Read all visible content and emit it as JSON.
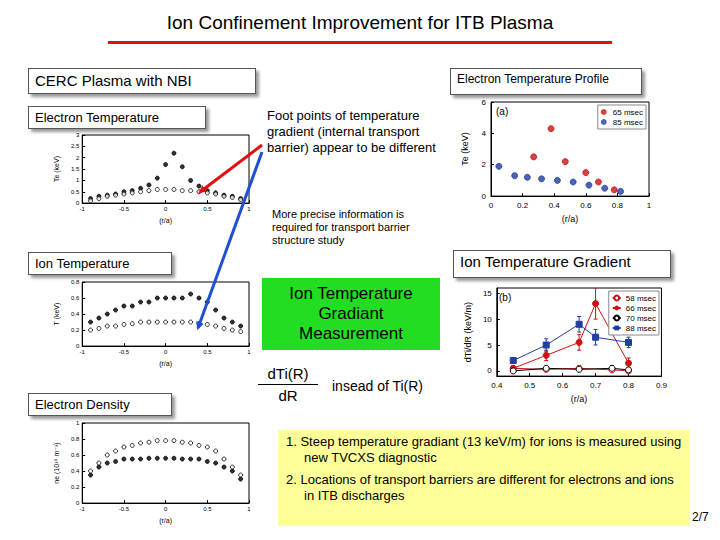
{
  "title": "Ion Confinement Improvement for ITB Plasma",
  "header": "CERC Plasma with NBI",
  "notes": {
    "foot_points": "Foot points of temperature gradient (internal transport barrier) appear to be different",
    "precise": "More precise information is required for transport barrier structure study"
  },
  "measurement_box": "Ion Temperature Gradiant Measurement",
  "formula": {
    "numerator": "dTi(R)",
    "denominator": "dR",
    "text": "insead of Ti(R)"
  },
  "conclusions": [
    "1. Steep temperature gradiant (13 keV/m) for ions is measured using new TVCXS diagnostic",
    "2. Locations of transport barriers are different for electrons and ions in ITB discharges"
  ],
  "page": "2/7",
  "chart_data": [
    {
      "type": "scatter",
      "title": "Electron Temperature",
      "x_label": "(r/a)",
      "y_label": "Te (keV)",
      "xlim": [
        -1,
        1
      ],
      "xticks": [
        -1,
        -0.5,
        0,
        0.5,
        1
      ],
      "ylim": [
        0,
        3
      ],
      "yticks": [
        0,
        0.5,
        1,
        1.5,
        2,
        2.5,
        3
      ],
      "grid": false,
      "series": [
        {
          "color": "#000000",
          "marker": "circle",
          "x": [
            -0.9,
            -0.8,
            -0.7,
            -0.6,
            -0.5,
            -0.4,
            -0.3,
            -0.2,
            -0.1,
            0,
            0.1,
            0.2,
            0.3,
            0.4,
            0.5,
            0.6,
            0.7,
            0.8,
            0.9
          ],
          "values": [
            0.2,
            0.3,
            0.35,
            0.4,
            0.5,
            0.55,
            0.65,
            0.8,
            1.1,
            1.7,
            2.2,
            1.6,
            1.0,
            0.75,
            0.55,
            0.45,
            0.35,
            0.3,
            0.2
          ]
        },
        {
          "color": "#000000",
          "marker": "open_circle",
          "x": [
            -0.9,
            -0.8,
            -0.7,
            -0.6,
            -0.5,
            -0.4,
            -0.3,
            -0.2,
            -0.1,
            0,
            0.1,
            0.2,
            0.3,
            0.4,
            0.5,
            0.6,
            0.7,
            0.8,
            0.9
          ],
          "values": [
            0.1,
            0.2,
            0.3,
            0.35,
            0.4,
            0.45,
            0.5,
            0.55,
            0.6,
            0.6,
            0.6,
            0.55,
            0.55,
            0.5,
            0.45,
            0.4,
            0.3,
            0.25,
            0.15
          ]
        }
      ]
    },
    {
      "type": "scatter",
      "title": "Ion Temperature",
      "x_label": "(r/a)",
      "y_label": "T (keV)",
      "xlim": [
        -1,
        1
      ],
      "xticks": [
        -1,
        -0.5,
        0,
        0.5,
        1
      ],
      "ylim": [
        0,
        0.8
      ],
      "yticks": [
        0,
        0.2,
        0.4,
        0.6,
        0.8
      ],
      "grid": false,
      "series": [
        {
          "color": "#000000",
          "marker": "circle",
          "x": [
            -0.9,
            -0.8,
            -0.7,
            -0.6,
            -0.5,
            -0.4,
            -0.3,
            -0.2,
            -0.1,
            0,
            0.1,
            0.2,
            0.3,
            0.4,
            0.5,
            0.6,
            0.7,
            0.8,
            0.9
          ],
          "values": [
            0.3,
            0.35,
            0.4,
            0.45,
            0.5,
            0.5,
            0.55,
            0.55,
            0.6,
            0.6,
            0.6,
            0.6,
            0.65,
            0.6,
            0.55,
            0.45,
            0.35,
            0.3,
            0.25
          ]
        },
        {
          "color": "#000000",
          "marker": "open_circle",
          "x": [
            -0.9,
            -0.8,
            -0.7,
            -0.6,
            -0.5,
            -0.4,
            -0.3,
            -0.2,
            -0.1,
            0,
            0.1,
            0.2,
            0.3,
            0.4,
            0.5,
            0.6,
            0.7,
            0.8,
            0.9
          ],
          "values": [
            0.2,
            0.22,
            0.25,
            0.25,
            0.27,
            0.28,
            0.3,
            0.3,
            0.3,
            0.3,
            0.3,
            0.3,
            0.3,
            0.28,
            0.27,
            0.25,
            0.22,
            0.2,
            0.18
          ]
        }
      ]
    },
    {
      "type": "scatter",
      "title": "Electron Density",
      "x_label": "(r/a)",
      "y_label": "ne (10¹⁹ m⁻³)",
      "xlim": [
        -1,
        1
      ],
      "xticks": [
        -1,
        -0.5,
        0,
        0.5,
        1
      ],
      "ylim": [
        0,
        1
      ],
      "yticks": [
        0,
        0.2,
        0.4,
        0.6,
        0.8,
        1
      ],
      "grid": false,
      "series": [
        {
          "color": "#000000",
          "marker": "circle",
          "x": [
            -0.9,
            -0.8,
            -0.7,
            -0.6,
            -0.5,
            -0.4,
            -0.3,
            -0.2,
            -0.1,
            0,
            0.1,
            0.2,
            0.3,
            0.4,
            0.5,
            0.6,
            0.7,
            0.8,
            0.9
          ],
          "values": [
            0.35,
            0.45,
            0.5,
            0.52,
            0.55,
            0.55,
            0.55,
            0.56,
            0.56,
            0.56,
            0.56,
            0.55,
            0.55,
            0.55,
            0.52,
            0.5,
            0.45,
            0.4,
            0.3
          ]
        },
        {
          "color": "#000000",
          "marker": "open_circle",
          "x": [
            -0.9,
            -0.8,
            -0.7,
            -0.6,
            -0.5,
            -0.4,
            -0.3,
            -0.2,
            -0.1,
            0,
            0.1,
            0.2,
            0.3,
            0.4,
            0.5,
            0.6,
            0.7,
            0.8,
            0.9
          ],
          "values": [
            0.4,
            0.5,
            0.6,
            0.65,
            0.7,
            0.72,
            0.75,
            0.76,
            0.78,
            0.78,
            0.78,
            0.76,
            0.75,
            0.72,
            0.7,
            0.65,
            0.55,
            0.45,
            0.35
          ]
        }
      ]
    },
    {
      "type": "scatter",
      "title": "Electron Temperature Profile",
      "annotation": "(a)",
      "x_label": "(r/a)",
      "y_label": "Te (keV)",
      "xlim": [
        0,
        1
      ],
      "xticks": [
        0,
        0.2,
        0.4,
        0.6,
        0.8,
        1
      ],
      "ylim": [
        0,
        6
      ],
      "yticks": [
        0,
        2,
        4,
        6
      ],
      "grid": false,
      "legend": "upper right",
      "series": [
        {
          "name": "65 msec",
          "color": "#cc1111",
          "marker": "circle",
          "x": [
            0.27,
            0.38,
            0.47,
            0.6,
            0.68,
            0.78
          ],
          "values": [
            2.5,
            4.3,
            2.2,
            1.5,
            0.9,
            0.4
          ]
        },
        {
          "name": "85 msec",
          "color": "#1f3fa0",
          "marker": "circle",
          "x": [
            0.05,
            0.15,
            0.23,
            0.32,
            0.42,
            0.52,
            0.62,
            0.72,
            0.82
          ],
          "values": [
            1.9,
            1.3,
            1.2,
            1.1,
            1.0,
            0.9,
            0.7,
            0.5,
            0.3
          ]
        }
      ]
    },
    {
      "type": "line",
      "title": "Ion Temperature Gradient",
      "annotation": "(b)",
      "x_label": "(r/a)",
      "y_label": "dTi/dR (keV/m)",
      "xlim": [
        0.4,
        0.9
      ],
      "xticks": [
        0.4,
        0.5,
        0.6,
        0.7,
        0.8,
        0.9
      ],
      "ylim": [
        -1,
        16
      ],
      "yticks": [
        0,
        5,
        10,
        15
      ],
      "grid": false,
      "legend": "upper right",
      "series": [
        {
          "name": "58 msec",
          "color": "#cc1111",
          "marker": "open_circle",
          "x": [
            0.45,
            0.55,
            0.65,
            0.75,
            0.8
          ],
          "values": [
            0.5,
            0.3,
            0.5,
            0.2,
            0
          ],
          "errors": [
            0.4,
            0.4,
            0.5,
            0.4,
            0.3
          ]
        },
        {
          "name": "66 msec",
          "color": "#cc1111",
          "marker": "circle",
          "x": [
            0.45,
            0.55,
            0.65,
            0.7,
            0.8
          ],
          "values": [
            0.5,
            3,
            5.5,
            13,
            1.5
          ],
          "errors": [
            0.5,
            1,
            1.5,
            3,
            1
          ]
        },
        {
          "name": "70 msec",
          "color": "#000000",
          "marker": "open_circle",
          "x": [
            0.45,
            0.55,
            0.65,
            0.75,
            0.8
          ],
          "values": [
            0,
            0.5,
            0.3,
            0.5,
            0.2
          ],
          "errors": [
            0.3,
            0.4,
            0.4,
            0.5,
            0.3
          ]
        },
        {
          "name": "88 msec",
          "color": "#1f3fa0",
          "marker": "square",
          "x": [
            0.45,
            0.55,
            0.65,
            0.7,
            0.8
          ],
          "values": [
            2,
            5,
            9,
            6.5,
            5.5
          ],
          "errors": [
            0.5,
            1.2,
            1.5,
            1.5,
            1
          ]
        }
      ]
    }
  ]
}
